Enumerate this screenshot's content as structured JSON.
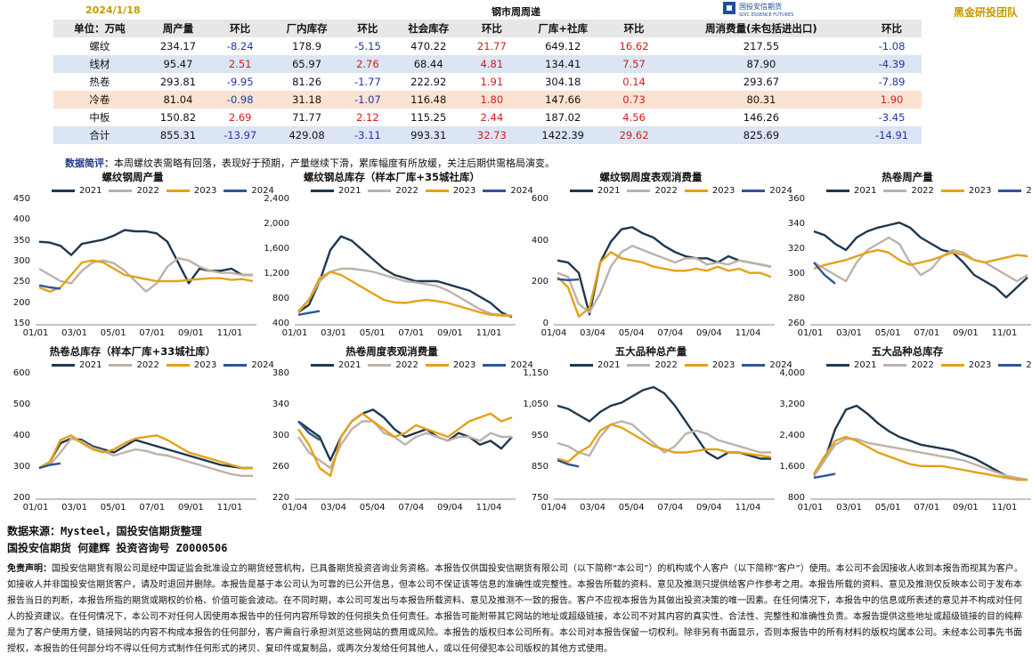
{
  "header": {
    "date": "2024/1/18",
    "title": "钢市周周递",
    "logo_text": "国投安信期货",
    "logo_sub": "SDIC ESSENCE FUTURES",
    "team": "黑金研投团队"
  },
  "table": {
    "headers": [
      "单位：万吨",
      "周产量",
      "环比",
      "厂内库存",
      "环比",
      "社会库存",
      "环比",
      "厂库+社库",
      "环比",
      "周消费量(未包括进出口)",
      "环比"
    ],
    "rows": [
      {
        "cells": [
          "螺纹",
          "234.17",
          "-8.24",
          "178.9",
          "-5.15",
          "470.22",
          "21.77",
          "649.12",
          "16.62",
          "217.55",
          "-1.08"
        ],
        "style": "white"
      },
      {
        "cells": [
          "线材",
          "95.47",
          "2.51",
          "65.97",
          "2.76",
          "68.44",
          "4.81",
          "134.41",
          "7.57",
          "87.90",
          "-4.39"
        ],
        "style": "blue"
      },
      {
        "cells": [
          "热卷",
          "293.81",
          "-9.95",
          "81.26",
          "-1.77",
          "222.92",
          "1.91",
          "304.18",
          "0.14",
          "293.67",
          "-7.89"
        ],
        "style": "white"
      },
      {
        "cells": [
          "冷卷",
          "81.04",
          "-0.98",
          "31.18",
          "-1.07",
          "116.48",
          "1.80",
          "147.66",
          "0.73",
          "80.31",
          "1.90"
        ],
        "style": "pink"
      },
      {
        "cells": [
          "中板",
          "150.82",
          "2.69",
          "71.77",
          "2.12",
          "115.25",
          "2.44",
          "187.02",
          "4.56",
          "146.26",
          "-3.45"
        ],
        "style": "white"
      },
      {
        "cells": [
          "合计",
          "855.31",
          "-13.97",
          "429.08",
          "-3.11",
          "993.31",
          "32.73",
          "1422.39",
          "29.62",
          "825.69",
          "-14.91"
        ],
        "style": "blue"
      }
    ]
  },
  "comment": {
    "label": "数据简评：",
    "text": "本周螺纹表需略有回落，表现好于预期，产量继续下滑，累库幅度有所放缓，关注后期供需格局演变。"
  },
  "legend": [
    "2021",
    "2022",
    "2023",
    "2024"
  ],
  "colors": {
    "2021": "#1d3850",
    "2022": "#bdb2a8",
    "2023": "#e5a117",
    "2024": "#2f5597",
    "neg": "#2035a8",
    "pos": "#d21d1d",
    "accent": "#c89a00"
  },
  "chart_data": [
    {
      "type": "line",
      "title": "螺纹钢周产量",
      "ylim": [
        150,
        450
      ],
      "yticks": [
        "450",
        "400",
        "350",
        "300",
        "250",
        "200",
        "150"
      ],
      "xticks": [
        "01/01",
        "03/01",
        "05/01",
        "07/01",
        "09/01",
        "11/01"
      ],
      "series": [
        {
          "name": "2021",
          "values": [
            350,
            348,
            340,
            318,
            345,
            350,
            355,
            365,
            378,
            375,
            375,
            370,
            350,
            300,
            250,
            285,
            280,
            280,
            285,
            270,
            270
          ]
        },
        {
          "name": "2022",
          "values": [
            285,
            270,
            255,
            250,
            280,
            300,
            305,
            298,
            280,
            255,
            230,
            250,
            290,
            310,
            305,
            290,
            280,
            275,
            275,
            270,
            270
          ]
        },
        {
          "name": "2023",
          "values": [
            240,
            230,
            240,
            270,
            300,
            305,
            300,
            285,
            270,
            265,
            260,
            255,
            255,
            255,
            258,
            260,
            262,
            262,
            258,
            260,
            255
          ]
        },
        {
          "name": "2024",
          "values": [
            245,
            240,
            237
          ]
        }
      ]
    },
    {
      "type": "line",
      "title": "螺纹钢总库存（样本厂库+35城社库）",
      "ylim": [
        400,
        2400
      ],
      "yticks": [
        "2,400",
        "2,000",
        "1,600",
        "1,200",
        "800",
        "400"
      ],
      "xticks": [
        "01/01",
        "03/01",
        "05/01",
        "07/01",
        "09/01",
        "11/01"
      ],
      "series": [
        {
          "name": "2021",
          "values": [
            600,
            720,
            1100,
            1600,
            1820,
            1750,
            1600,
            1450,
            1300,
            1200,
            1150,
            1100,
            1100,
            1100,
            1050,
            1000,
            950,
            850,
            750,
            600,
            520
          ]
        },
        {
          "name": "2022",
          "values": [
            620,
            800,
            1100,
            1250,
            1300,
            1300,
            1280,
            1250,
            1200,
            1150,
            1100,
            1080,
            1050,
            1020,
            950,
            850,
            750,
            650,
            580,
            560,
            550
          ]
        },
        {
          "name": "2023",
          "values": [
            600,
            800,
            1150,
            1250,
            1200,
            1100,
            1000,
            900,
            800,
            760,
            750,
            780,
            800,
            780,
            750,
            700,
            650,
            600,
            560,
            550,
            540
          ]
        },
        {
          "name": "2024",
          "values": [
            560,
            590,
            620
          ]
        }
      ]
    },
    {
      "type": "line",
      "title": "螺纹钢周度表观消费量",
      "ylim": [
        0,
        600
      ],
      "yticks": [
        "600",
        "400",
        "200",
        "0"
      ],
      "xticks": [
        "01/04",
        "03/04",
        "05/04",
        "07/04",
        "09/04",
        "11/04"
      ],
      "series": [
        {
          "name": "2021",
          "values": [
            310,
            300,
            250,
            50,
            300,
            400,
            460,
            470,
            440,
            420,
            380,
            350,
            330,
            320,
            320,
            300,
            330,
            310,
            300,
            290,
            280
          ]
        },
        {
          "name": "2022",
          "values": [
            250,
            230,
            100,
            60,
            150,
            280,
            350,
            380,
            360,
            340,
            320,
            300,
            320,
            320,
            290,
            300,
            290,
            310,
            300,
            290,
            280
          ]
        },
        {
          "name": "2023",
          "values": [
            230,
            180,
            40,
            80,
            300,
            350,
            320,
            310,
            300,
            280,
            270,
            260,
            260,
            270,
            260,
            280,
            260,
            270,
            250,
            250,
            230
          ]
        },
        {
          "name": "2024",
          "values": [
            220,
            215,
            218
          ]
        }
      ]
    },
    {
      "type": "line",
      "title": "热卷周产量",
      "ylim": [
        260,
        360
      ],
      "yticks": [
        "360",
        "340",
        "320",
        "300",
        "280",
        "260"
      ],
      "xticks": [
        "01/01",
        "03/01",
        "05/01",
        "07/01",
        "09/01",
        "11/01"
      ],
      "series": [
        {
          "name": "2021",
          "values": [
            335,
            332,
            325,
            320,
            330,
            335,
            338,
            340,
            342,
            338,
            330,
            325,
            320,
            318,
            310,
            300,
            295,
            290,
            282,
            290,
            298
          ]
        },
        {
          "name": "2022",
          "values": [
            310,
            305,
            300,
            295,
            310,
            320,
            325,
            330,
            325,
            310,
            300,
            305,
            315,
            320,
            318,
            312,
            310,
            305,
            300,
            295,
            300
          ]
        },
        {
          "name": "2023",
          "values": [
            305,
            308,
            310,
            312,
            315,
            318,
            320,
            318,
            312,
            308,
            310,
            312,
            315,
            318,
            316,
            312,
            310,
            312,
            314,
            316,
            315
          ]
        },
        {
          "name": "2024",
          "values": [
            310,
            300,
            293
          ]
        }
      ]
    },
    {
      "type": "line",
      "title": "热卷总库存（样本厂库+33城社库）",
      "ylim": [
        200,
        600
      ],
      "yticks": [
        "600",
        "500",
        "400",
        "300",
        "200"
      ],
      "xticks": [
        "01/01",
        "03/01",
        "05/01",
        "07/01",
        "09/01",
        "11/01"
      ],
      "series": [
        {
          "name": "2021",
          "values": [
            300,
            320,
            380,
            395,
            390,
            370,
            360,
            350,
            370,
            390,
            380,
            370,
            360,
            350,
            340,
            330,
            320,
            310,
            305,
            300,
            300
          ]
        },
        {
          "name": "2022",
          "values": [
            300,
            310,
            350,
            395,
            385,
            365,
            355,
            340,
            350,
            360,
            355,
            345,
            340,
            330,
            320,
            310,
            300,
            290,
            280,
            275,
            275
          ]
        },
        {
          "name": "2023",
          "values": [
            300,
            320,
            390,
            405,
            380,
            360,
            350,
            360,
            380,
            395,
            400,
            405,
            390,
            370,
            350,
            340,
            330,
            320,
            310,
            300,
            300
          ]
        },
        {
          "name": "2024",
          "values": [
            300,
            310,
            315
          ]
        }
      ]
    },
    {
      "type": "line",
      "title": "热卷周度表观消费量",
      "ylim": [
        220,
        380
      ],
      "yticks": [
        "380",
        "340",
        "300",
        "260",
        "220"
      ],
      "xticks": [
        "01/04",
        "03/04",
        "05/04",
        "07/04",
        "09/04",
        "11/04"
      ],
      "series": [
        {
          "name": "2021",
          "values": [
            320,
            310,
            300,
            270,
            300,
            320,
            330,
            335,
            325,
            310,
            300,
            305,
            310,
            300,
            295,
            305,
            300,
            290,
            295,
            285,
            300
          ]
        },
        {
          "name": "2022",
          "values": [
            300,
            280,
            270,
            260,
            290,
            310,
            320,
            320,
            305,
            300,
            290,
            300,
            305,
            300,
            295,
            300,
            300,
            295,
            305,
            300,
            300
          ]
        },
        {
          "name": "2023",
          "values": [
            310,
            290,
            260,
            250,
            300,
            320,
            330,
            320,
            310,
            300,
            305,
            315,
            310,
            305,
            300,
            310,
            320,
            325,
            330,
            320,
            325
          ]
        },
        {
          "name": "2024",
          "values": [
            320,
            305,
            296
          ]
        }
      ]
    },
    {
      "type": "line",
      "title": "五大品种总产量",
      "ylim": [
        750,
        1150
      ],
      "yticks": [
        "1,150",
        "1,050",
        "950",
        "850",
        "750"
      ],
      "xticks": [
        "01/04",
        "03/04",
        "05/04",
        "07/04",
        "09/04",
        "11/04"
      ],
      "series": [
        {
          "name": "2021",
          "values": [
            1050,
            1040,
            1020,
            1000,
            1030,
            1050,
            1060,
            1080,
            1100,
            1110,
            1090,
            1050,
            1000,
            950,
            900,
            880,
            900,
            900,
            890,
            880,
            880
          ]
        },
        {
          "name": "2022",
          "values": [
            930,
            920,
            900,
            890,
            950,
            990,
            1000,
            990,
            960,
            930,
            900,
            920,
            960,
            970,
            960,
            940,
            930,
            920,
            910,
            900,
            900
          ]
        },
        {
          "name": "2023",
          "values": [
            880,
            870,
            900,
            920,
            970,
            990,
            980,
            960,
            940,
            920,
            910,
            900,
            900,
            905,
            910,
            910,
            900,
            900,
            895,
            890,
            885
          ]
        },
        {
          "name": "2024",
          "values": [
            875,
            862,
            855
          ]
        }
      ]
    },
    {
      "type": "line",
      "title": "五大品种总库存",
      "ylim": [
        800,
        4000
      ],
      "yticks": [
        "4,000",
        "3,200",
        "2,400",
        "1,600",
        "800"
      ],
      "xticks": [
        "01/01",
        "03/01",
        "05/01",
        "07/01",
        "09/01",
        "11/01"
      ],
      "series": [
        {
          "name": "2021",
          "values": [
            1400,
            1800,
            2600,
            3100,
            3200,
            3000,
            2750,
            2550,
            2400,
            2300,
            2200,
            2150,
            2100,
            2050,
            1950,
            1850,
            1700,
            1550,
            1400,
            1300,
            1300
          ]
        },
        {
          "name": "2022",
          "values": [
            1400,
            1800,
            2200,
            2350,
            2350,
            2250,
            2200,
            2150,
            2100,
            2050,
            2000,
            1950,
            1900,
            1850,
            1800,
            1700,
            1600,
            1500,
            1400,
            1350,
            1300
          ]
        },
        {
          "name": "2023",
          "values": [
            1450,
            1900,
            2300,
            2400,
            2300,
            2150,
            2000,
            1900,
            1800,
            1700,
            1650,
            1650,
            1650,
            1600,
            1550,
            1500,
            1450,
            1400,
            1350,
            1300,
            1300
          ]
        },
        {
          "name": "2024",
          "values": [
            1350,
            1400,
            1450
          ]
        }
      ]
    }
  ],
  "footer": {
    "source": "数据来源：Mysteel，国投安信期货整理",
    "author": "国投安信期货 何建辉 投资咨询号 Z0000506",
    "disclaimer_label": "免责声明：",
    "disclaimer": "国投安信期货有限公司是经中国证监会批准设立的期货经营机构，已具备期货投资咨询业务资格。本报告仅供国投安信期货有限公司（以下简称“本公司”）的机构或个人客户（以下简称“客户”）使用。本公司不会因接收人收到本报告而视其为客户。如接收人并非国投安信期货客户，请及时退回并删除。本报告是基于本公司认为可靠的已公开信息，但本公司不保证该等信息的准确性或完整性。本报告所载的资料、意见及推测只提供给客户作参考之用。本报告所载的资料、意见及推测仅反映本公司于发布本报告当日的判断，本报告所指的期货或期权的价格、价值可能会波动。在不同时期，本公司可发出与本报告所载资料、意见及推测不一致的报告。客户不应视本报告为其做出投资决策的唯一因素。在任何情况下，本报告中的信息或所表述的意见并不构成对任何人的投资建议。在任何情况下，本公司不对任何人因使用本报告中的任何内容所导致的任何损失负任何责任。本报告可能附带其它网站的地址或超级链接，本公司不对其内容的真实性、合法性、完整性和准确性负责。本报告提供这些地址或超级链接的目的纯粹是为了客户使用方便，链接网站的内容不构成本报告的任何部分，客户需自行承担浏览这些网站的费用或风险。本报告的版权归本公司所有。本公司对本报告保留一切权利。除非另有书面显示，否则本报告中的所有材料的版权均属本公司。未经本公司事先书面授权，本报告的任何部分均不得以任何方式制作任何形式的拷贝、复印件或复制品，或再次分发给任何其他人，或以任何侵犯本公司版权的其他方式使用。"
  }
}
